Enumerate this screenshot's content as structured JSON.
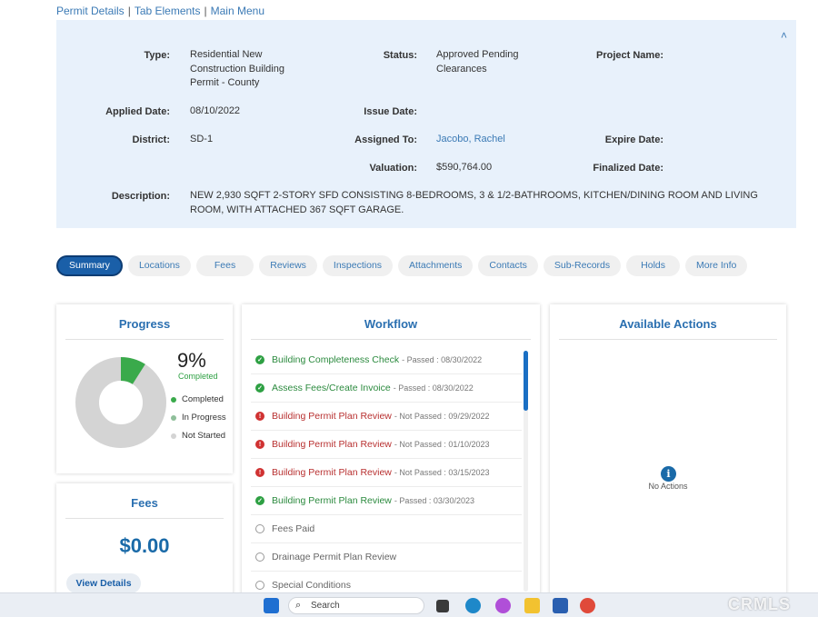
{
  "breadcrumb": [
    "Permit Details",
    "Tab Elements",
    "Main Menu"
  ],
  "details": {
    "type_label": "Type:",
    "type_value": "Residential New Construction Building Permit - County",
    "status_label": "Status:",
    "status_value": "Approved Pending Clearances",
    "project_label": "Project Name:",
    "applied_label": "Applied Date:",
    "applied_value": "08/10/2022",
    "issue_label": "Issue Date:",
    "district_label": "District:",
    "district_value": "SD-1",
    "assigned_label": "Assigned To:",
    "assigned_value": "Jacobo, Rachel",
    "expire_label": "Expire Date:",
    "valuation_label": "Valuation:",
    "valuation_value": "$590,764.00",
    "finalized_label": "Finalized Date:",
    "description_label": "Description:",
    "description_value": "NEW 2,930 SQFT 2-STORY SFD CONSISTING 8-BEDROOMS, 3 & 1/2-BATHROOMS, KITCHEN/DINING ROOM AND LIVING ROOM, WITH ATTACHED 367 SQFT GARAGE."
  },
  "tabs": [
    "Summary",
    "Locations",
    "Fees",
    "Reviews",
    "Inspections",
    "Attachments",
    "Contacts",
    "Sub-Records",
    "Holds",
    "More Info"
  ],
  "progress": {
    "title": "Progress",
    "percent_text": "9%",
    "percent_value": 9,
    "percent_label": "Completed",
    "legend": [
      "Completed",
      "In Progress",
      "Not Started"
    ],
    "colors": {
      "completed": "#3aaa4b",
      "in_progress": "#8fbf9a",
      "not_started": "#d4d4d4"
    }
  },
  "fees": {
    "title": "Fees",
    "amount": "$0.00",
    "button": "View Details"
  },
  "workflow": {
    "title": "Workflow",
    "items": [
      {
        "name": "Building Completeness Check",
        "status": "- Passed : 08/30/2022",
        "state": "ok"
      },
      {
        "name": "Assess Fees/Create Invoice",
        "status": "- Passed : 08/30/2022",
        "state": "ok"
      },
      {
        "name": "Building Permit Plan Review",
        "status": "- Not Passed : 09/29/2022",
        "state": "bad"
      },
      {
        "name": "Building Permit Plan Review",
        "status": "- Not Passed : 01/10/2023",
        "state": "bad"
      },
      {
        "name": "Building Permit Plan Review",
        "status": "- Not Passed : 03/15/2023",
        "state": "bad"
      },
      {
        "name": "Building Permit Plan Review",
        "status": "- Passed : 03/30/2023",
        "state": "ok"
      },
      {
        "name": "Fees Paid",
        "status": "",
        "state": "none"
      },
      {
        "name": "Drainage Permit Plan Review",
        "status": "",
        "state": "none"
      },
      {
        "name": "Special Conditions",
        "status": "",
        "state": "none"
      }
    ]
  },
  "actions": {
    "title": "Available Actions",
    "empty_text": "No Actions"
  },
  "taskbar": {
    "search_placeholder": "Search",
    "watermark": "CRMLS"
  }
}
